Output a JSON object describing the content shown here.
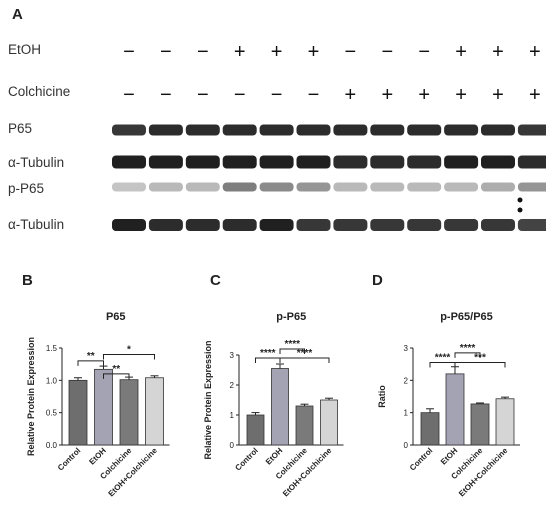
{
  "panels": {
    "A": "A",
    "B": "B",
    "C": "C",
    "D": "D"
  },
  "western": {
    "treatments": [
      {
        "label": "EtOH",
        "signs": [
          "−",
          "−",
          "−",
          "+",
          "+",
          "+",
          "−",
          "−",
          "−",
          "+",
          "+",
          "+"
        ]
      },
      {
        "label": "Colchicine",
        "signs": [
          "−",
          "−",
          "−",
          "−",
          "−",
          "−",
          "+",
          "+",
          "+",
          "+",
          "+",
          "+"
        ]
      }
    ],
    "blot_rows": [
      {
        "label": "P65",
        "intensity": [
          0.85,
          0.9,
          0.9,
          0.9,
          0.9,
          0.9,
          0.9,
          0.9,
          0.9,
          0.9,
          0.9,
          0.85
        ]
      },
      {
        "label": "α-Tubulin",
        "intensity": [
          0.95,
          0.95,
          0.95,
          0.95,
          0.95,
          0.95,
          0.9,
          0.9,
          0.9,
          0.95,
          0.95,
          0.9
        ]
      },
      {
        "label": "p-P65",
        "intensity": [
          0.25,
          0.3,
          0.3,
          0.55,
          0.5,
          0.45,
          0.3,
          0.3,
          0.3,
          0.3,
          0.35,
          0.45
        ]
      },
      {
        "label": "α-Tubulin",
        "intensity": [
          0.95,
          0.9,
          0.9,
          0.9,
          0.95,
          0.85,
          0.85,
          0.85,
          0.85,
          0.85,
          0.85,
          0.8
        ]
      }
    ]
  },
  "chart_data": [
    {
      "panel": "B",
      "type": "bar",
      "title": "P65",
      "ylabel": "Relative Protein Expression",
      "categories": [
        "Control",
        "EtOH",
        "Colchicine",
        "EtOH+Colchicine"
      ],
      "values": [
        1.0,
        1.17,
        1.01,
        1.04
      ],
      "errors": [
        0.04,
        0.05,
        0.04,
        0.03
      ],
      "bar_colors": [
        "#6e6e6e",
        "#a3a3b4",
        "#7a7a7a",
        "#d5d5d5"
      ],
      "ylim": [
        0.0,
        1.5
      ],
      "yticks": [
        "0.0",
        "0.5",
        "1.0",
        "1.5"
      ],
      "significance": [
        {
          "from": 0,
          "to": 1,
          "label": "**",
          "level": 1.3
        },
        {
          "from": 1,
          "to": 2,
          "label": "**",
          "level": 1.1
        },
        {
          "from": 1,
          "to": 3,
          "label": "*",
          "level": 1.4
        }
      ]
    },
    {
      "panel": "C",
      "type": "bar",
      "title": "p-P65",
      "ylabel": "Relative Protein Expression",
      "categories": [
        "Control",
        "EtOH",
        "Colchicine",
        "EtOH+Colchicine"
      ],
      "values": [
        1.0,
        2.55,
        1.3,
        1.5
      ],
      "errors": [
        0.08,
        0.15,
        0.06,
        0.06
      ],
      "bar_colors": [
        "#6e6e6e",
        "#a3a3b4",
        "#7a7a7a",
        "#d5d5d5"
      ],
      "ylim": [
        0,
        3
      ],
      "yticks": [
        "0",
        "1",
        "2",
        "3"
      ],
      "significance": [
        {
          "from": 0,
          "to": 1,
          "label": "****",
          "level": 2.9
        },
        {
          "from": 1,
          "to": 2,
          "label": "****",
          "level": 3.2
        },
        {
          "from": 1,
          "to": 3,
          "label": "****",
          "level": 2.9
        }
      ]
    },
    {
      "panel": "D",
      "type": "bar",
      "title": "p-P65/P65",
      "ylabel": "Ratio",
      "categories": [
        "Control",
        "EtOH",
        "Colchicine",
        "EtOH+Colchicine"
      ],
      "values": [
        1.0,
        2.2,
        1.27,
        1.43
      ],
      "errors": [
        0.12,
        0.22,
        0.03,
        0.05
      ],
      "bar_colors": [
        "#6e6e6e",
        "#a3a3b4",
        "#7a7a7a",
        "#d5d5d5"
      ],
      "ylim": [
        0,
        3
      ],
      "yticks": [
        "0",
        "1",
        "2",
        "3"
      ],
      "significance": [
        {
          "from": 0,
          "to": 1,
          "label": "****",
          "level": 2.55
        },
        {
          "from": 1,
          "to": 2,
          "label": "****",
          "level": 2.85
        },
        {
          "from": 1,
          "to": 3,
          "label": "***",
          "level": 2.55
        }
      ]
    }
  ]
}
